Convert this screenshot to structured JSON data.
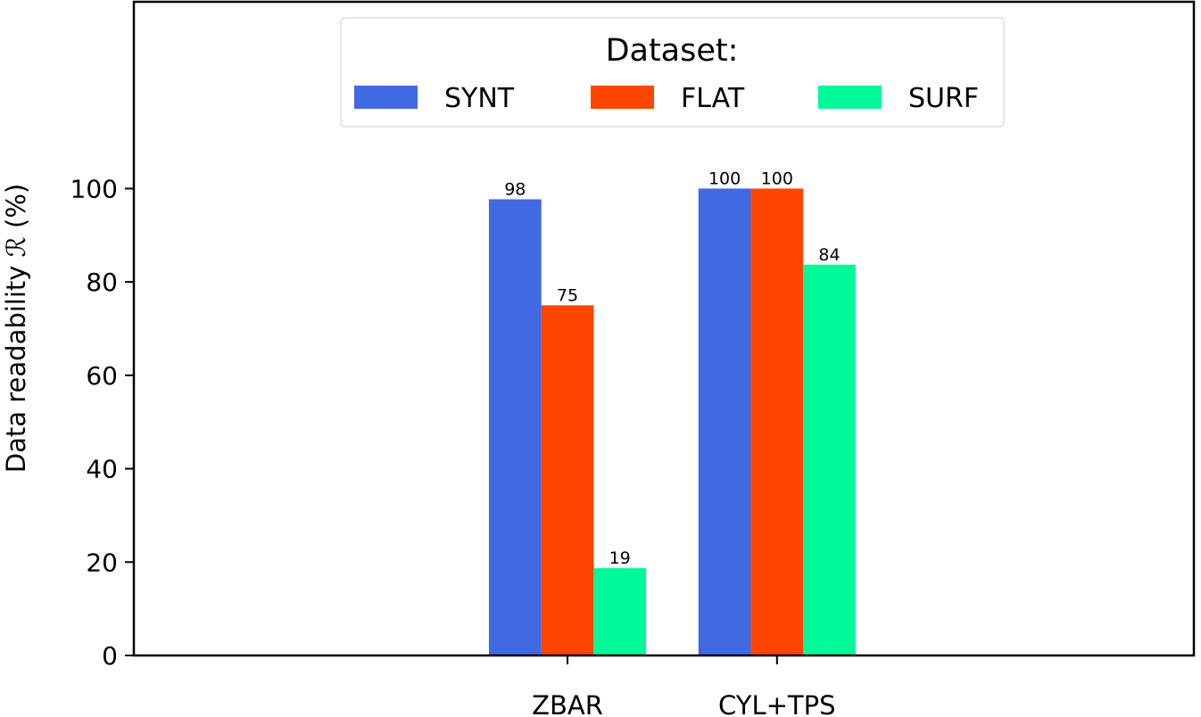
{
  "chart_data": {
    "type": "bar",
    "title": "",
    "xlabel": "",
    "ylabel": "Data readability ℛ (%)",
    "categories": [
      "ZBAR",
      "CYL+TPS"
    ],
    "series": [
      {
        "name": "SYNT",
        "color": "#4169E1",
        "values": [
          97.7,
          100
        ],
        "labels": [
          "98",
          "100"
        ]
      },
      {
        "name": "FLAT",
        "color": "#FF4500",
        "values": [
          75,
          100
        ],
        "labels": [
          "75",
          "100"
        ]
      },
      {
        "name": "SURF",
        "color": "#00FA9A",
        "values": [
          18.7,
          83.7
        ],
        "labels": [
          "19",
          "84"
        ]
      }
    ],
    "ylim": [
      0,
      140
    ],
    "xlim": [
      -2.07,
      2.99
    ],
    "yticks": [
      0,
      20,
      40,
      60,
      80,
      100
    ],
    "grid": false,
    "legend": {
      "title": "Dataset:",
      "placement": "top-center",
      "columns": 3
    }
  }
}
